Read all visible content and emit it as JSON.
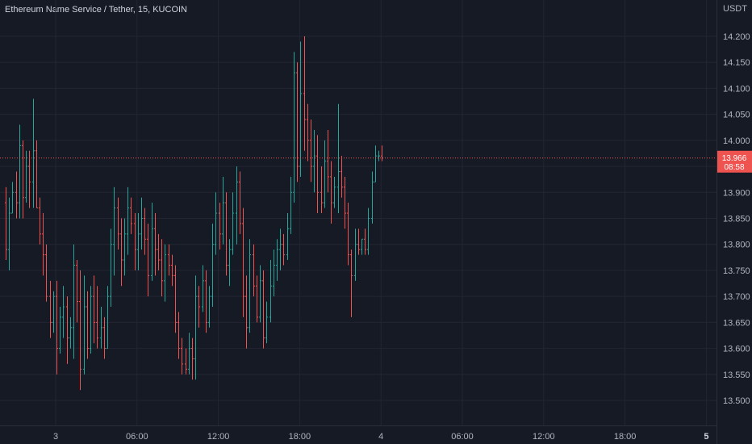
{
  "title": "Ethereum Name Service / Tether, 15, KUCOIN",
  "chart_data": {
    "type": "ohlc",
    "currency": "USDT",
    "ylim": [
      13.47,
      14.25
    ],
    "y_ticks": [
      "14.200",
      "14.150",
      "14.100",
      "14.050",
      "14.000",
      "13.950",
      "13.900",
      "13.850",
      "13.800",
      "13.750",
      "13.700",
      "13.650",
      "13.600",
      "13.550",
      "13.500"
    ],
    "x_ticks": [
      {
        "label": "3",
        "bar": 10,
        "bold": false
      },
      {
        "label": "06:00",
        "bar": 34,
        "bold": false
      },
      {
        "label": "12:00",
        "bar": 58,
        "bold": false
      },
      {
        "label": "18:00",
        "bar": 82,
        "bold": false
      },
      {
        "label": "4",
        "bar": 106,
        "bold": false
      },
      {
        "label": "06:00",
        "bar": 130,
        "bold": false
      },
      {
        "label": "12:00",
        "bar": 154,
        "bold": false
      },
      {
        "label": "18:00",
        "bar": 178,
        "bold": false
      },
      {
        "label": "5",
        "bar": 202,
        "bold": true
      }
    ],
    "last_price": {
      "value": "13.966",
      "countdown": "08:58",
      "level": 13.966
    },
    "colors": {
      "up": "#26a69a",
      "down": "#ef5350",
      "background": "#161a25",
      "grid": "#232632"
    },
    "bars": [
      [
        13.88,
        13.91,
        13.77,
        13.79
      ],
      [
        13.79,
        13.89,
        13.75,
        13.86
      ],
      [
        13.86,
        13.92,
        13.86,
        13.9
      ],
      [
        13.9,
        13.94,
        13.85,
        13.88
      ],
      [
        13.88,
        14.03,
        13.85,
        13.99
      ],
      [
        13.99,
        14.0,
        13.85,
        13.89
      ],
      [
        13.89,
        13.98,
        13.88,
        13.95
      ],
      [
        13.95,
        13.98,
        13.87,
        13.92
      ],
      [
        13.92,
        14.08,
        13.87,
        13.98
      ],
      [
        13.98,
        14.0,
        13.87,
        13.87
      ],
      [
        13.87,
        13.89,
        13.8,
        13.82
      ],
      [
        13.82,
        13.86,
        13.74,
        13.78
      ],
      [
        13.78,
        13.8,
        13.69,
        13.7
      ],
      [
        13.7,
        13.73,
        13.62,
        13.65
      ],
      [
        13.65,
        13.71,
        13.63,
        13.7
      ],
      [
        13.7,
        13.73,
        13.55,
        13.6
      ],
      [
        13.6,
        13.68,
        13.59,
        13.66
      ],
      [
        13.66,
        13.72,
        13.62,
        13.68
      ],
      [
        13.68,
        13.7,
        13.57,
        13.62
      ],
      [
        13.62,
        13.66,
        13.6,
        13.64
      ],
      [
        13.64,
        13.8,
        13.58,
        13.76
      ],
      [
        13.76,
        13.77,
        13.65,
        13.69
      ],
      [
        13.69,
        13.75,
        13.52,
        13.56
      ],
      [
        13.56,
        13.74,
        13.55,
        13.68
      ],
      [
        13.68,
        13.71,
        13.58,
        13.6
      ],
      [
        13.6,
        13.72,
        13.59,
        13.7
      ],
      [
        13.7,
        13.74,
        13.61,
        13.65
      ],
      [
        13.65,
        13.72,
        13.6,
        13.62
      ],
      [
        13.62,
        13.68,
        13.6,
        13.64
      ],
      [
        13.64,
        13.66,
        13.58,
        13.6
      ],
      [
        13.6,
        13.72,
        13.6,
        13.7
      ],
      [
        13.7,
        13.83,
        13.68,
        13.8
      ],
      [
        13.8,
        13.91,
        13.74,
        13.87
      ],
      [
        13.87,
        13.89,
        13.79,
        13.82
      ],
      [
        13.82,
        13.85,
        13.72,
        13.77
      ],
      [
        13.77,
        13.85,
        13.74,
        13.82
      ],
      [
        13.82,
        13.91,
        13.78,
        13.87
      ],
      [
        13.87,
        13.89,
        13.82,
        13.84
      ],
      [
        13.84,
        13.86,
        13.75,
        13.79
      ],
      [
        13.79,
        13.86,
        13.75,
        13.82
      ],
      [
        13.82,
        13.89,
        13.79,
        13.85
      ],
      [
        13.85,
        13.87,
        13.78,
        13.81
      ],
      [
        13.81,
        13.84,
        13.7,
        13.74
      ],
      [
        13.74,
        13.88,
        13.73,
        13.83
      ],
      [
        13.83,
        13.86,
        13.74,
        13.79
      ],
      [
        13.79,
        13.82,
        13.75,
        13.77
      ],
      [
        13.77,
        13.81,
        13.7,
        13.73
      ],
      [
        13.73,
        13.8,
        13.69,
        13.78
      ],
      [
        13.78,
        13.8,
        13.74,
        13.76
      ],
      [
        13.76,
        13.78,
        13.72,
        13.74
      ],
      [
        13.74,
        13.76,
        13.63,
        13.65
      ],
      [
        13.65,
        13.67,
        13.58,
        13.6
      ],
      [
        13.6,
        13.62,
        13.55,
        13.57
      ],
      [
        13.57,
        13.6,
        13.55,
        13.56
      ],
      [
        13.56,
        13.63,
        13.55,
        13.6
      ],
      [
        13.6,
        13.62,
        13.54,
        13.58
      ],
      [
        13.58,
        13.74,
        13.54,
        13.7
      ],
      [
        13.7,
        13.72,
        13.64,
        13.68
      ],
      [
        13.68,
        13.76,
        13.67,
        13.73
      ],
      [
        13.73,
        13.75,
        13.63,
        13.65
      ],
      [
        13.65,
        13.72,
        13.64,
        13.7
      ],
      [
        13.7,
        13.84,
        13.68,
        13.8
      ],
      [
        13.8,
        13.9,
        13.78,
        13.86
      ],
      [
        13.86,
        13.88,
        13.79,
        13.82
      ],
      [
        13.82,
        13.93,
        13.8,
        13.88
      ],
      [
        13.88,
        13.9,
        13.74,
        13.76
      ],
      [
        13.76,
        13.81,
        13.72,
        13.79
      ],
      [
        13.79,
        13.9,
        13.78,
        13.86
      ],
      [
        13.86,
        13.95,
        13.8,
        13.92
      ],
      [
        13.92,
        13.94,
        13.82,
        13.84
      ],
      [
        13.84,
        13.87,
        13.66,
        13.7
      ],
      [
        13.7,
        13.74,
        13.6,
        13.64
      ],
      [
        13.64,
        13.81,
        13.63,
        13.78
      ],
      [
        13.78,
        13.8,
        13.7,
        13.72
      ],
      [
        13.72,
        13.74,
        13.65,
        13.66
      ],
      [
        13.66,
        13.76,
        13.65,
        13.73
      ],
      [
        13.73,
        13.75,
        13.6,
        13.62
      ],
      [
        13.62,
        13.69,
        13.61,
        13.66
      ],
      [
        13.66,
        13.77,
        13.65,
        13.72
      ],
      [
        13.72,
        13.79,
        13.7,
        13.76
      ],
      [
        13.76,
        13.81,
        13.73,
        13.79
      ],
      [
        13.79,
        13.83,
        13.75,
        13.8
      ],
      [
        13.8,
        13.82,
        13.76,
        13.78
      ],
      [
        13.78,
        13.86,
        13.77,
        13.83
      ],
      [
        13.83,
        13.93,
        13.82,
        13.9
      ],
      [
        13.9,
        14.17,
        13.88,
        14.13
      ],
      [
        14.13,
        14.15,
        13.92,
        13.95
      ],
      [
        13.95,
        14.19,
        13.93,
        14.09
      ],
      [
        14.09,
        14.2,
        13.98,
        14.04
      ],
      [
        14.04,
        14.07,
        13.96,
        14.0
      ],
      [
        14.0,
        14.04,
        13.92,
        13.95
      ],
      [
        13.95,
        14.02,
        13.9,
        13.97
      ],
      [
        13.97,
        14.01,
        13.86,
        13.9
      ],
      [
        13.9,
        13.95,
        13.86,
        13.88
      ],
      [
        13.88,
        14.0,
        13.87,
        13.96
      ],
      [
        13.96,
        14.02,
        13.9,
        13.93
      ],
      [
        13.93,
        13.96,
        13.84,
        13.88
      ],
      [
        13.88,
        13.93,
        13.87,
        13.91
      ],
      [
        13.91,
        14.07,
        13.86,
        13.94
      ],
      [
        13.94,
        13.97,
        13.89,
        13.91
      ],
      [
        13.91,
        13.93,
        13.83,
        13.86
      ],
      [
        13.86,
        13.88,
        13.76,
        13.78
      ],
      [
        13.78,
        13.79,
        13.66,
        13.74
      ],
      [
        13.74,
        13.83,
        13.73,
        13.8
      ],
      [
        13.8,
        13.83,
        13.78,
        13.79
      ],
      [
        13.79,
        13.81,
        13.78,
        13.81
      ],
      [
        13.81,
        13.83,
        13.78,
        13.79
      ],
      [
        13.79,
        13.87,
        13.78,
        13.85
      ],
      [
        13.85,
        13.94,
        13.84,
        13.92
      ],
      [
        13.92,
        13.99,
        13.92,
        13.97
      ],
      [
        13.97,
        13.98,
        13.96,
        13.97
      ],
      [
        13.97,
        13.99,
        13.96,
        13.966
      ]
    ]
  }
}
